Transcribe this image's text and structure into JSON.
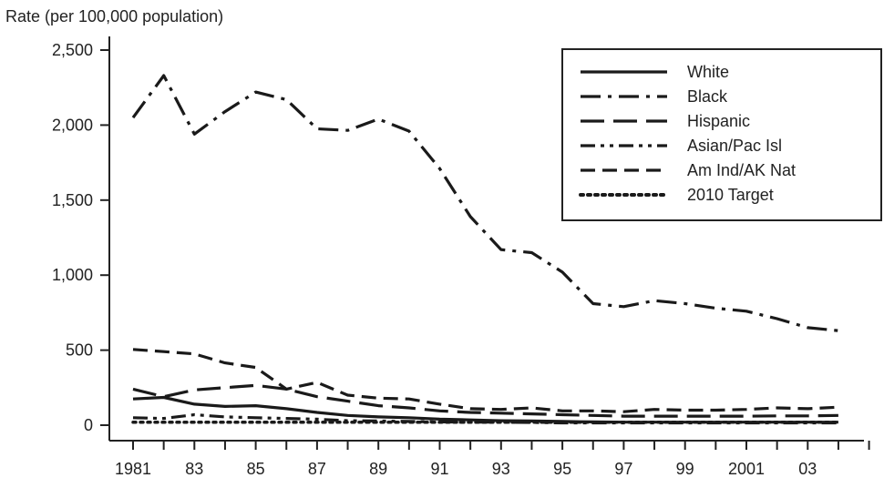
{
  "chart_data": {
    "type": "line",
    "title": "",
    "xlabel": "",
    "ylabel": "Rate (per 100,000 population)",
    "x": [
      1981,
      1982,
      1983,
      1984,
      1985,
      1986,
      1987,
      1988,
      1989,
      1990,
      1991,
      1992,
      1993,
      1994,
      1995,
      1996,
      1997,
      1998,
      1999,
      2000,
      2001,
      2002,
      2003,
      2004
    ],
    "x_tick_values": [
      1981,
      1983,
      1985,
      1987,
      1989,
      1991,
      1993,
      1995,
      1997,
      1999,
      2001,
      2003
    ],
    "x_tick_labels": [
      "1981",
      "83",
      "85",
      "87",
      "89",
      "91",
      "93",
      "95",
      "97",
      "99",
      "2001",
      "03"
    ],
    "xlim": [
      1981,
      2005
    ],
    "ylim": [
      0,
      2500
    ],
    "y_tick_values": [
      0,
      500,
      1000,
      1500,
      2000,
      2500
    ],
    "y_tick_labels": [
      "0",
      "500",
      "1,000",
      "1,500",
      "2,000",
      "2,500"
    ],
    "legend": "top-right",
    "grid": false,
    "series": [
      {
        "name": "White",
        "dash": "solid",
        "values": [
          175,
          185,
          140,
          125,
          130,
          110,
          85,
          65,
          55,
          50,
          40,
          35,
          30,
          28,
          25,
          22,
          20,
          20,
          20,
          20,
          20,
          20,
          20,
          20
        ]
      },
      {
        "name": "Black",
        "dash": "dashdot",
        "values": [
          2050,
          2330,
          1940,
          2090,
          2220,
          2170,
          1975,
          1965,
          2040,
          1960,
          1710,
          1390,
          1170,
          1150,
          1020,
          810,
          790,
          830,
          810,
          780,
          760,
          710,
          650,
          630
        ]
      },
      {
        "name": "Hispanic",
        "dash": "longdash",
        "values": [
          240,
          190,
          235,
          250,
          265,
          240,
          190,
          160,
          130,
          115,
          95,
          85,
          80,
          75,
          70,
          65,
          60,
          60,
          60,
          60,
          60,
          62,
          62,
          65
        ]
      },
      {
        "name": "Asian/Pac Isl",
        "dash": "dashdotdot",
        "values": [
          50,
          45,
          70,
          55,
          50,
          45,
          40,
          30,
          28,
          25,
          22,
          20,
          20,
          18,
          15,
          15,
          15,
          15,
          15,
          15,
          15,
          15,
          15,
          15
        ]
      },
      {
        "name": "Am Ind/AK Nat",
        "dash": "dashed",
        "values": [
          505,
          490,
          475,
          415,
          385,
          240,
          285,
          200,
          180,
          175,
          140,
          110,
          105,
          115,
          95,
          95,
          90,
          105,
          100,
          100,
          105,
          115,
          110,
          120
        ]
      },
      {
        "name": "2010 Target",
        "dash": "dotted",
        "values": [
          20,
          20,
          20,
          20,
          20,
          20,
          20,
          20,
          20,
          20,
          20,
          20,
          20,
          20,
          20,
          20,
          20,
          20,
          20,
          20,
          20,
          20,
          20,
          20
        ]
      }
    ]
  }
}
